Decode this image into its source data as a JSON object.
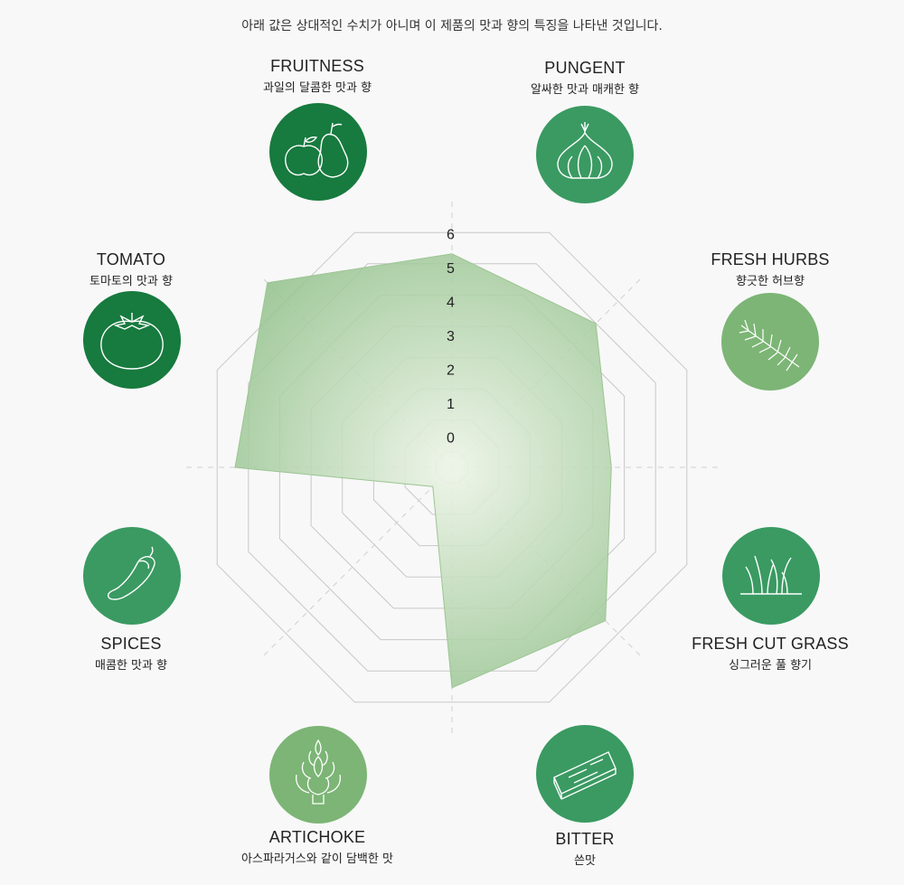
{
  "note": "아래 값은 상대적인 수치가 아니며 이 제품의 맛과 향의 특징을 나타낸 것입니다.",
  "attributes": [
    {
      "en": "FRUITNESS",
      "ko": "과일의 달콤한 맛과 향",
      "icon": "fruit-icon",
      "color": "#177a3e"
    },
    {
      "en": "PUNGENT",
      "ko": "알싸한 맛과 매캐한 향",
      "icon": "garlic-icon",
      "color": "#3a9a62"
    },
    {
      "en": "FRESH HURBS",
      "ko": "향긋한 허브향",
      "icon": "herb-icon",
      "color": "#7cb575"
    },
    {
      "en": "FRESH CUT GRASS",
      "ko": "싱그러운 풀 향기",
      "icon": "grass-icon",
      "color": "#3a9a62"
    },
    {
      "en": "BITTER",
      "ko": "쓴맛",
      "icon": "wood-icon",
      "color": "#3a9a62"
    },
    {
      "en": "ARTICHOKE",
      "ko": "아스파라거스와 같이 담백한 맛",
      "icon": "artichoke-icon",
      "color": "#7cb575"
    },
    {
      "en": "SPICES",
      "ko": "매콤한 맛과 향",
      "icon": "pepper-icon",
      "color": "#3a9a62"
    },
    {
      "en": "TOMATO",
      "ko": "토마토의 맛과 향",
      "icon": "tomato-icon",
      "color": "#177a3e"
    }
  ],
  "chart_data": {
    "type": "radar",
    "categories": [
      "FRUITNESS",
      "PUNGENT",
      "FRESH HURBS",
      "FRESH CUT GRASS",
      "BITTER",
      "ARTICHOKE",
      "SPICES",
      "TOMATO"
    ],
    "values": [
      5.8,
      5.5,
      4.2,
      5.9,
      6.0,
      0.3,
      5.9,
      7.2
    ],
    "scale_labels": [
      "0",
      "1",
      "2",
      "3",
      "4",
      "5",
      "6"
    ],
    "range": [
      0,
      7
    ],
    "fill_color": "#8dbe86",
    "grid_color": "#c8c8c8"
  }
}
